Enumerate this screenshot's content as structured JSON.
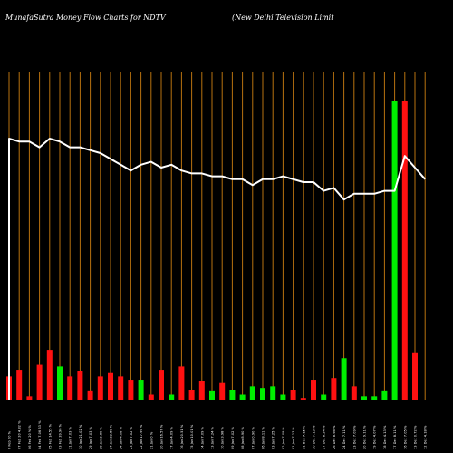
{
  "chart_data": {
    "type": "bar",
    "title": "MunafaSutra  Money Flow  Charts for NDTV",
    "subtitle": "(New  Delhi   Television  Limit",
    "colors": {
      "background": "#000000",
      "gridline": "#b8720f",
      "positive": "#00ee00",
      "negative": "#ff1111",
      "line": "#ffffff"
    },
    "categories": [
      "6 Feb 20 %",
      "07 Feb 20 4.82 %",
      "06 Feb 20 % %",
      "04 Feb 7.06 33 %",
      "05 Feb 14.55 %",
      "03 Feb 39.96 %",
      "31 Jan 7.03 %",
      "30 Jan 21.02 %",
      "29 Jan 7.03 %",
      "28 Jan 2.89 %",
      "27 Jan 22.59 %",
      "24 Jan 4.08 %",
      "23 Jan 7.02 %",
      "22 Jan 17.99 %",
      "21 Jan 0 %",
      "20 Jan 16.57 %",
      "17 Jan 4.09 %",
      "16 Jan 20.51 %",
      "15 Jan 10.01 %",
      "14 Jan 7.09 %",
      "13 Jan 7.24 %",
      "10 Jan 3.98 %",
      "09 Jan 7.02 %",
      "08 Jan 8.90 %",
      "07 Jan 0.90 %",
      "06 Jan 8.11 %",
      "03 Jan 7.25 %",
      "02 Jan 7.09 %",
      "01 Jan 7.13 %",
      "31 Dec 7.15 %",
      "30 Dec 7.13 %",
      "27 Dec 8.24 %",
      "26 Dec 8.98 %",
      "24 Dec 7.11 %",
      "23 Dec 7.09 %",
      "20 Dec 9.11 %",
      "19 Dec 4.07 %",
      "18 Dec 4.13 %",
      "17 Dec 8.11 %",
      "16 Dec 7.05 %",
      "13 Dec 0.72 %",
      "12 Dec 4.18 %"
    ],
    "series": [
      {
        "values": [
          14,
          18,
          2,
          21,
          30,
          20,
          14,
          17,
          5,
          14,
          16,
          14,
          12,
          12,
          3,
          18,
          3,
          20,
          6,
          11,
          5,
          10,
          6,
          3,
          8,
          7,
          8,
          3,
          6,
          1,
          12,
          3,
          13,
          25,
          8,
          2,
          2,
          5,
          180,
          180,
          28,
          0
        ],
        "direction": [
          "down",
          "down",
          "down",
          "down",
          "down",
          "up",
          "down",
          "down",
          "down",
          "down",
          "down",
          "down",
          "down",
          "up",
          "down",
          "down",
          "up",
          "down",
          "down",
          "down",
          "up",
          "down",
          "up",
          "up",
          "up",
          "up",
          "up",
          "up",
          "down",
          "down",
          "down",
          "up",
          "down",
          "up",
          "down",
          "up",
          "up",
          "up",
          "up",
          "down",
          "down",
          "down"
        ]
      },
      {
        "type": "line",
        "values": [
          100,
          99,
          99,
          97,
          100,
          99,
          97,
          97,
          96,
          95,
          93,
          91,
          89,
          91,
          92,
          90,
          91,
          89,
          88,
          88,
          87,
          87,
          86,
          86,
          84,
          86,
          86,
          87,
          86,
          85,
          85,
          82,
          83,
          79,
          81,
          81,
          81,
          82,
          82,
          94,
          90,
          86
        ]
      }
    ]
  }
}
